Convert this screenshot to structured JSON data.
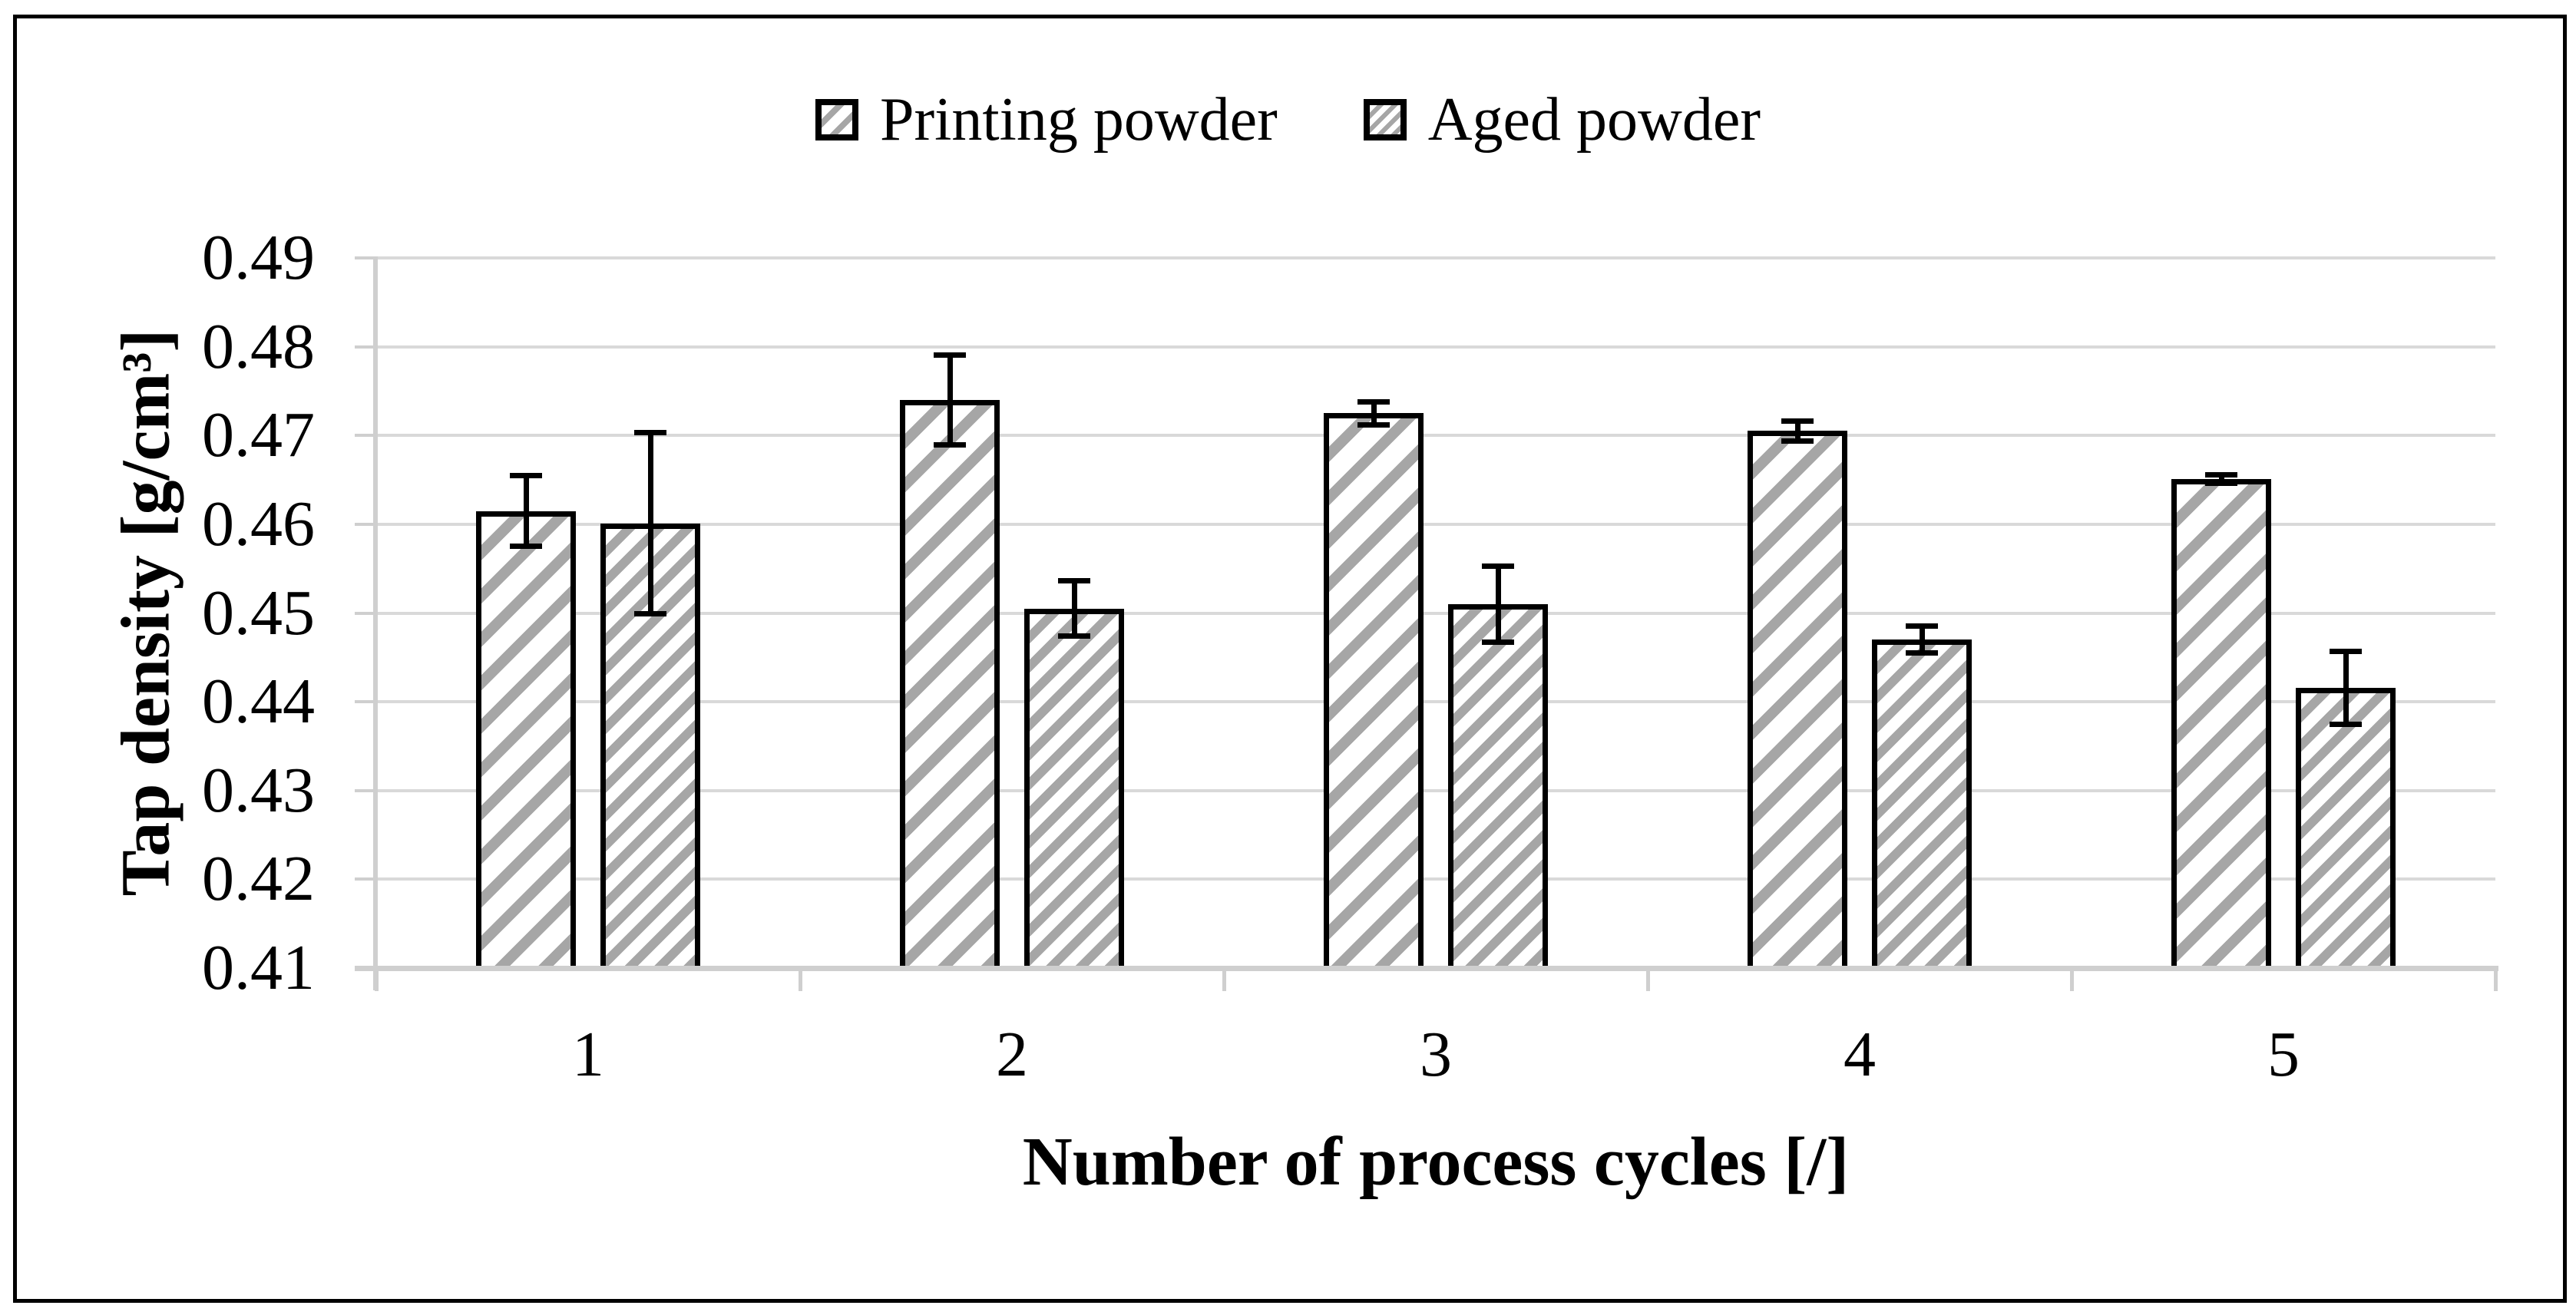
{
  "chart_data": {
    "type": "bar",
    "title": "",
    "categories": [
      "1",
      "2",
      "3",
      "4",
      "5"
    ],
    "series": [
      {
        "name": "Printing powder",
        "pattern": "sparse-diagonal-hatch",
        "values": [
          0.4615,
          0.474,
          0.4725,
          0.4705,
          0.4651
        ],
        "errors": [
          0.004,
          0.0051,
          0.0013,
          0.0011,
          0.0005
        ]
      },
      {
        "name": "Aged powder",
        "pattern": "dense-diagonal-hatch",
        "values": [
          0.4601,
          0.4505,
          0.451,
          0.447,
          0.4416
        ],
        "errors": [
          0.0102,
          0.0031,
          0.0043,
          0.0015,
          0.0041
        ]
      }
    ],
    "xlabel": "Number of process cycles [/]",
    "ylabel": "Tap density [g/cm³]",
    "ylim": [
      0.41,
      0.49
    ],
    "ytick_step": 0.01,
    "ytick_labels": [
      "0.49",
      "0.48",
      "0.47",
      "0.46",
      "0.45",
      "0.44",
      "0.43",
      "0.42",
      "0.41"
    ],
    "xtick_labels": [
      "1",
      "2",
      "3",
      "4",
      "5"
    ],
    "grid": "horizontal",
    "legend_position": "top-center",
    "error_bars": "plus-minus-with-caps",
    "colors": {
      "hatch_gray": "#A6A6A6",
      "gridline": "#D9D9D9",
      "axis_line": "#CFCFCF",
      "bar_outline": "#000000",
      "text": "#000000",
      "background": "#FFFFFF",
      "figure_border": "#000000"
    }
  }
}
